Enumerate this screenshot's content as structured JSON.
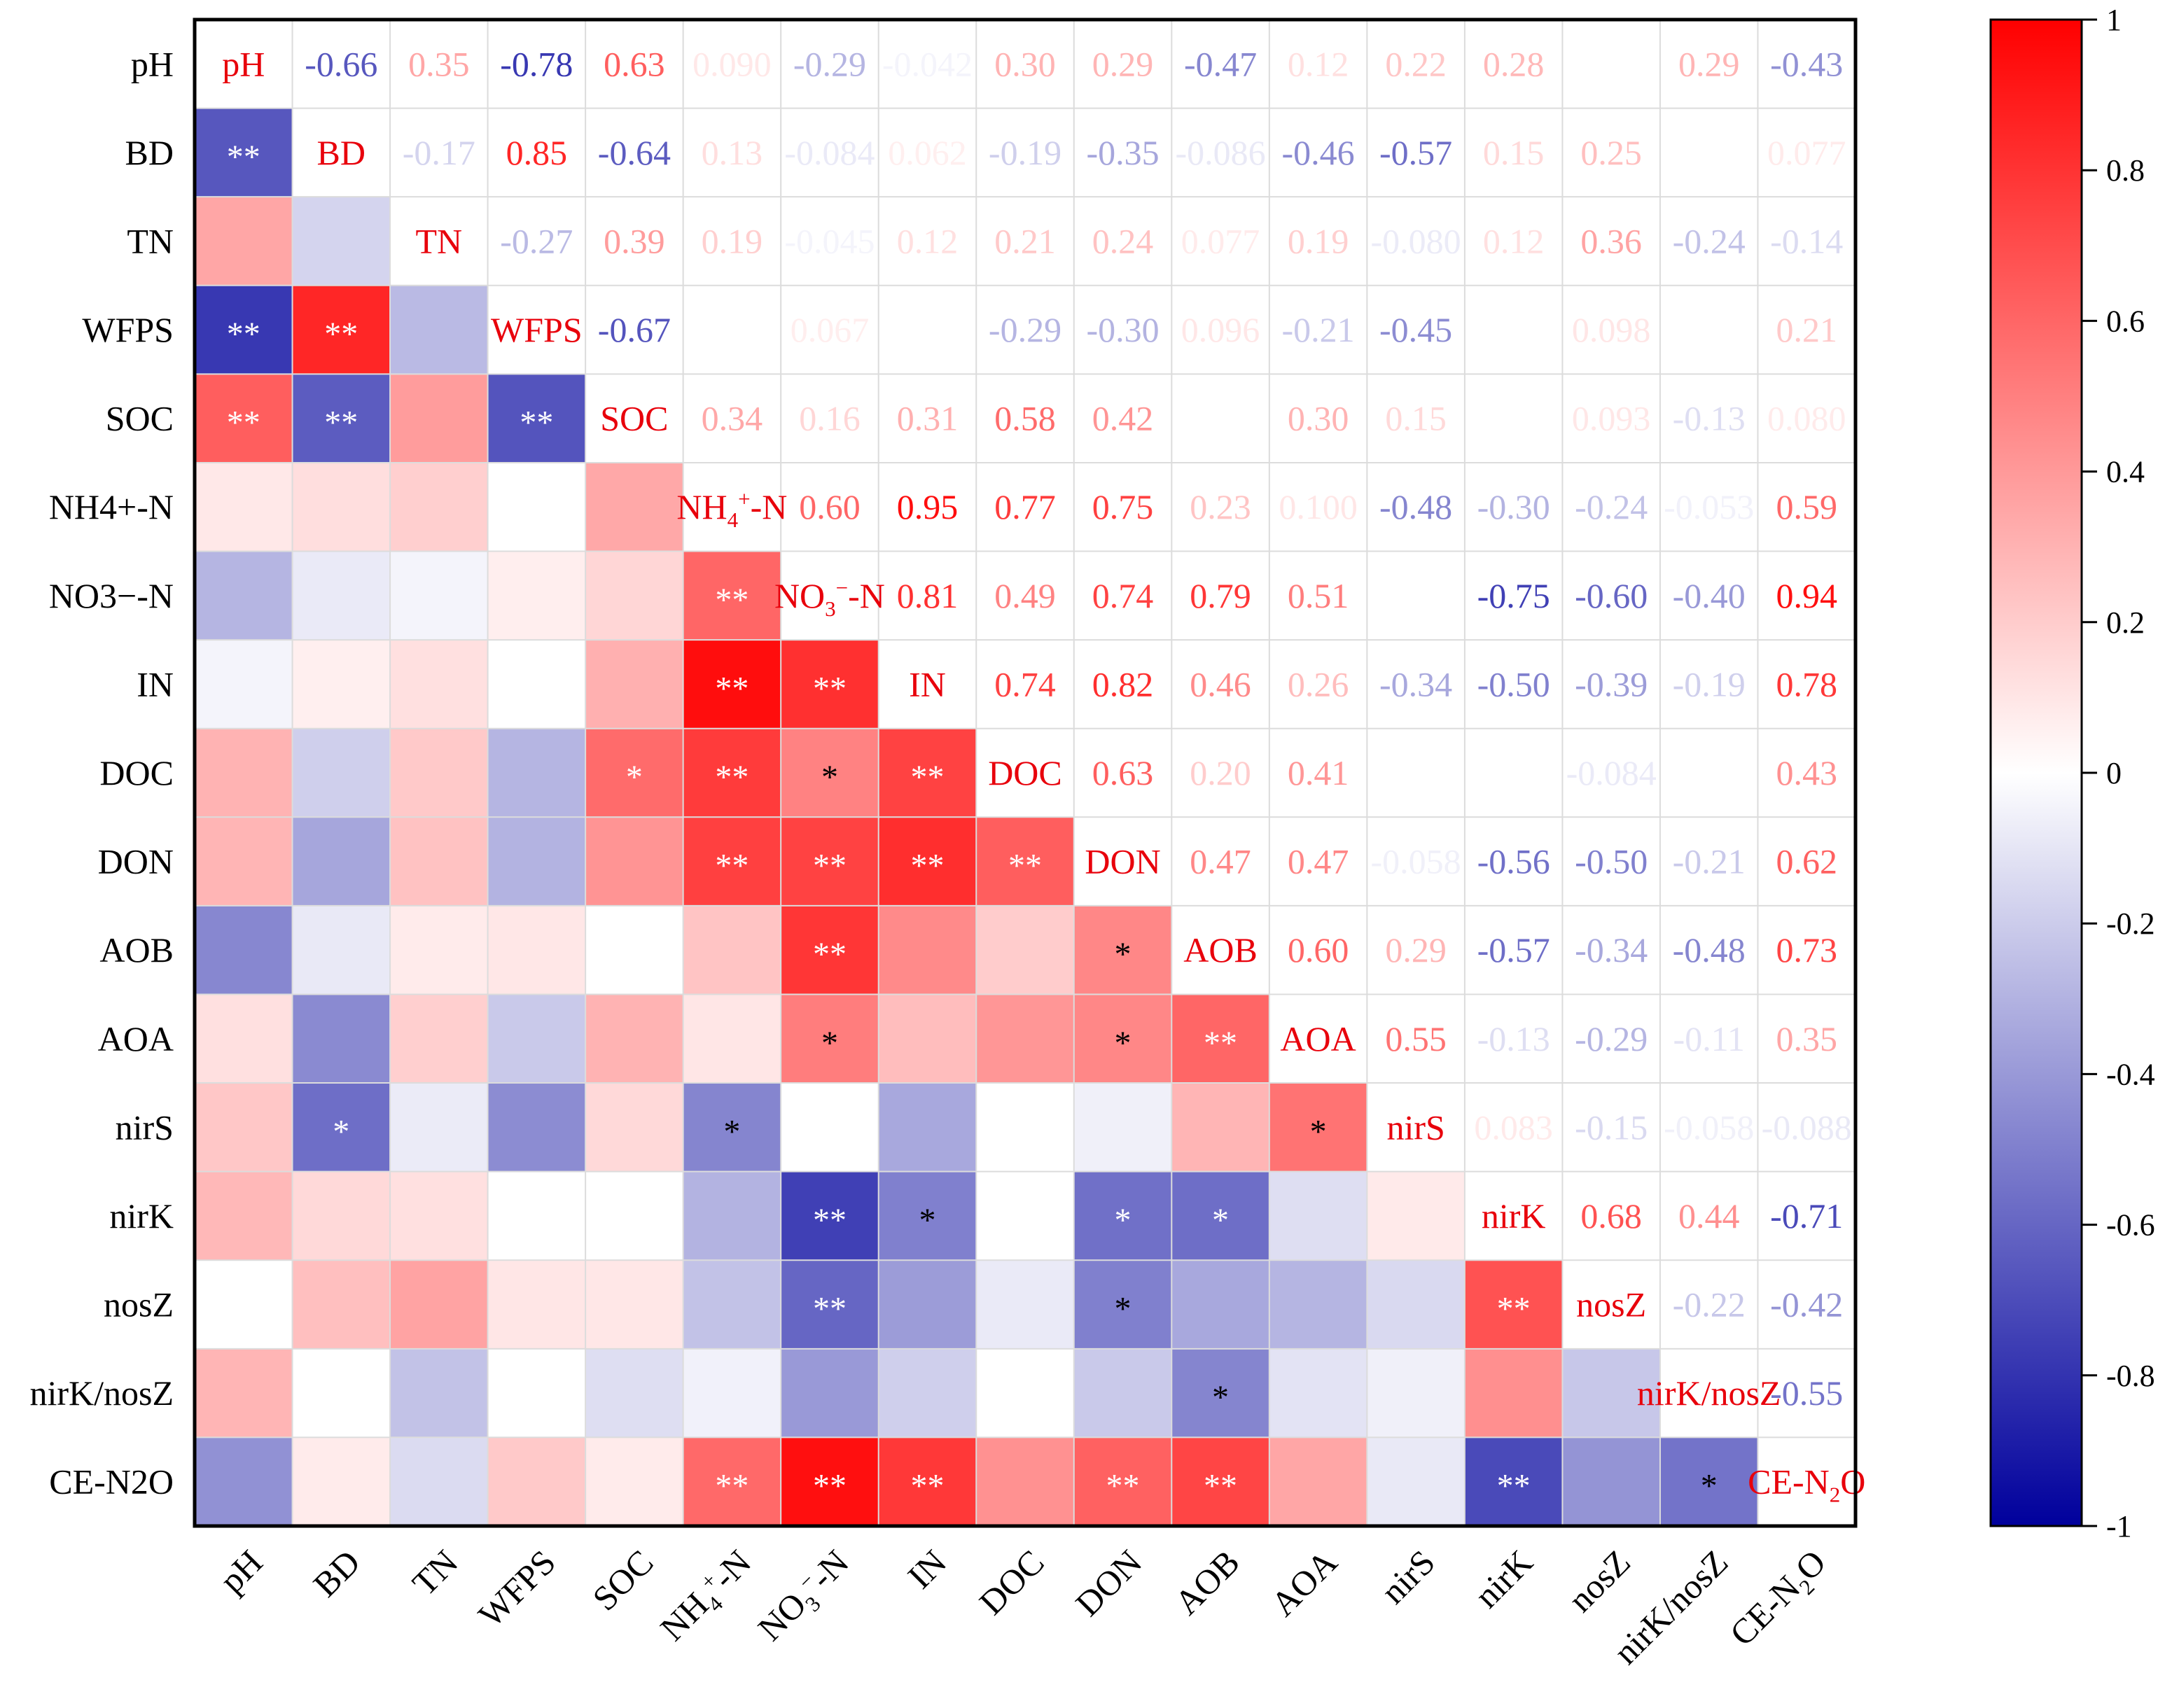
{
  "chart_data": {
    "type": "heatmap",
    "title": "",
    "variables": [
      "pH",
      "BD",
      "TN",
      "WFPS",
      "SOC",
      "NH4+-N",
      "NO3−-N",
      "IN",
      "DOC",
      "DON",
      "AOB",
      "AOA",
      "nirS",
      "nirK",
      "nosZ",
      "nirK/nosZ",
      "CE-N2O"
    ],
    "upper_triangle_r": [
      [
        "-0.66",
        "0.35",
        "-0.78",
        "0.63",
        "0.090",
        "-0.29",
        "-0.042",
        "0.30",
        "0.29",
        "-0.47",
        "0.12",
        "0.22",
        "0.28",
        null,
        "0.29",
        "-0.43"
      ],
      [
        "-0.17",
        "0.85",
        "-0.64",
        "0.13",
        "-0.084",
        "0.062",
        "-0.19",
        "-0.35",
        "-0.086",
        "-0.46",
        "-0.57",
        "0.15",
        "0.25",
        null,
        "0.077"
      ],
      [
        "-0.27",
        "0.39",
        "0.19",
        "-0.045",
        "0.12",
        "0.21",
        "0.24",
        "0.077",
        "0.19",
        "-0.080",
        "0.12",
        "0.36",
        "-0.24",
        "-0.14"
      ],
      [
        "-0.67",
        null,
        "0.067",
        null,
        "-0.29",
        "-0.30",
        "0.096",
        "-0.21",
        "-0.45",
        null,
        "0.098",
        null,
        "0.21"
      ],
      [
        "0.34",
        "0.16",
        "0.31",
        "0.58",
        "0.42",
        null,
        "0.30",
        "0.15",
        null,
        "0.093",
        "-0.13",
        "0.080"
      ],
      [
        "0.60",
        "0.95",
        "0.77",
        "0.75",
        "0.23",
        "0.100",
        "-0.48",
        "-0.30",
        "-0.24",
        "-0.053",
        "0.59"
      ],
      [
        "0.81",
        "0.49",
        "0.74",
        "0.79",
        "0.51",
        null,
        "-0.75",
        "-0.60",
        "-0.40",
        "0.94"
      ],
      [
        "0.74",
        "0.82",
        "0.46",
        "0.26",
        "-0.34",
        "-0.50",
        "-0.39",
        "-0.19",
        "0.78"
      ],
      [
        "0.63",
        "0.20",
        "0.41",
        null,
        null,
        "-0.084",
        null,
        "0.43"
      ],
      [
        "0.47",
        "0.47",
        "-0.058",
        "-0.56",
        "-0.50",
        "-0.21",
        "0.62"
      ],
      [
        "0.60",
        "0.29",
        "-0.57",
        "-0.34",
        "-0.48",
        "0.73"
      ],
      [
        "0.55",
        "-0.13",
        "-0.29",
        "-0.11",
        "0.35"
      ],
      [
        "0.083",
        "-0.15",
        "-0.058",
        "-0.088"
      ],
      [
        "0.68",
        "0.44",
        "-0.71"
      ],
      [
        "-0.22",
        "-0.42"
      ],
      [
        "-0.55"
      ],
      []
    ],
    "significance": [
      [
        "BD",
        "pH",
        "**"
      ],
      [
        "WFPS",
        "pH",
        "**"
      ],
      [
        "WFPS",
        "BD",
        "**"
      ],
      [
        "SOC",
        "pH",
        "**"
      ],
      [
        "SOC",
        "BD",
        "**"
      ],
      [
        "SOC",
        "WFPS",
        "**"
      ],
      [
        "NO3−-N",
        "NH4+-N",
        "**"
      ],
      [
        "IN",
        "NH4+-N",
        "**"
      ],
      [
        "IN",
        "NO3−-N",
        "**"
      ],
      [
        "DOC",
        "SOC",
        "*"
      ],
      [
        "DOC",
        "NH4+-N",
        "**"
      ],
      [
        "DOC",
        "NO3−-N",
        "*"
      ],
      [
        "DOC",
        "IN",
        "**"
      ],
      [
        "DON",
        "NH4+-N",
        "**"
      ],
      [
        "DON",
        "NO3−-N",
        "**"
      ],
      [
        "DON",
        "IN",
        "**"
      ],
      [
        "DON",
        "DOC",
        "**"
      ],
      [
        "AOB",
        "NO3−-N",
        "**"
      ],
      [
        "AOB",
        "DON",
        "*"
      ],
      [
        "AOA",
        "NO3−-N",
        "*"
      ],
      [
        "AOA",
        "DON",
        "*"
      ],
      [
        "AOA",
        "AOB",
        "**"
      ],
      [
        "nirS",
        "BD",
        "*"
      ],
      [
        "nirS",
        "NH4+-N",
        "*"
      ],
      [
        "nirS",
        "AOA",
        "*"
      ],
      [
        "nirK",
        "NO3−-N",
        "**"
      ],
      [
        "nirK",
        "IN",
        "*"
      ],
      [
        "nirK",
        "DON",
        "*"
      ],
      [
        "nirK",
        "AOB",
        "*"
      ],
      [
        "nosZ",
        "NO3−-N",
        "**"
      ],
      [
        "nosZ",
        "DON",
        "*"
      ],
      [
        "nosZ",
        "nirK",
        "**"
      ],
      [
        "nirK/nosZ",
        "AOB",
        "*"
      ],
      [
        "CE-N2O",
        "NH4+-N",
        "**"
      ],
      [
        "CE-N2O",
        "NO3−-N",
        "**"
      ],
      [
        "CE-N2O",
        "IN",
        "**"
      ],
      [
        "CE-N2O",
        "DON",
        "**"
      ],
      [
        "CE-N2O",
        "AOB",
        "**"
      ],
      [
        "CE-N2O",
        "nirK",
        "**"
      ],
      [
        "CE-N2O",
        "nirK/nosZ",
        "*"
      ]
    ],
    "colorbar": {
      "range": [
        -1,
        1
      ],
      "ticks": [
        "1",
        "0.8",
        "0.6",
        "0.4",
        "0.2",
        "0",
        "-0.2",
        "-0.4",
        "-0.6",
        "-0.8",
        "-1"
      ],
      "colors": {
        "negative": "#00009c",
        "zero": "#ffffff",
        "positive": "#ff0000"
      }
    },
    "diagonal_label_color": "#e8000b"
  }
}
